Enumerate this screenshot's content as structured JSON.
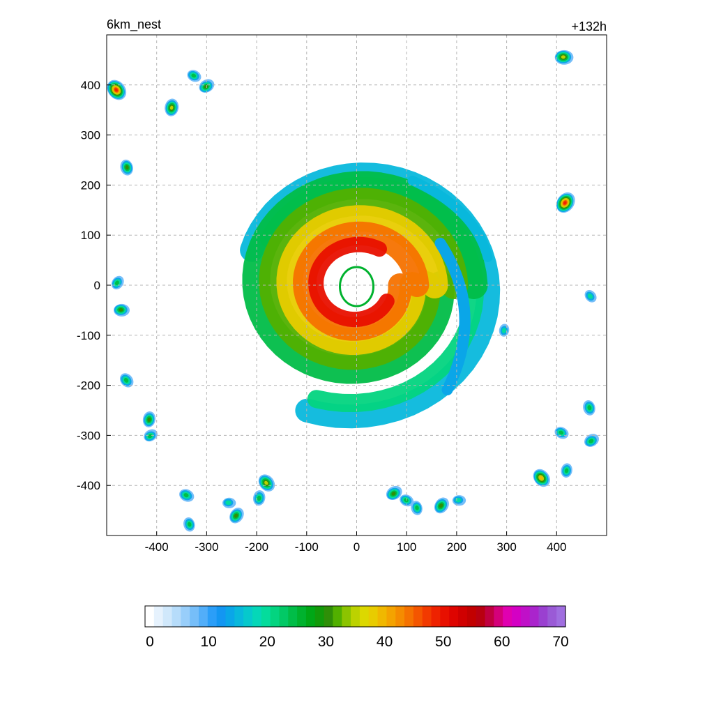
{
  "chart_data": {
    "type": "heatmap",
    "title_left": "6km_nest",
    "title_right": "+132h",
    "x_range": [
      -500,
      500
    ],
    "y_range": [
      -500,
      500
    ],
    "x_ticks": [
      -400,
      -300,
      -200,
      -100,
      0,
      100,
      200,
      300,
      400
    ],
    "y_ticks": [
      400,
      300,
      200,
      100,
      0,
      -100,
      -200,
      -300,
      -400
    ],
    "grid": true,
    "colorbar": {
      "min": 0,
      "max": 70,
      "labels": [
        0,
        10,
        20,
        30,
        40,
        50,
        60,
        70
      ],
      "colors": [
        "#ffffff",
        "#e6f2fd",
        "#d0e8fb",
        "#b6dcfa",
        "#98cefa",
        "#76bef9",
        "#52aef9",
        "#2b9ef8",
        "#1396f2",
        "#0aa6e8",
        "#08b8dc",
        "#06c9cc",
        "#05d7b8",
        "#04dc9c",
        "#03d480",
        "#02c966",
        "#01bd48",
        "#00b22e",
        "#00a716",
        "#129a0a",
        "#2f8f08",
        "#52b000",
        "#8cc400",
        "#bcd200",
        "#dcd800",
        "#e8cc00",
        "#f0b800",
        "#f4a300",
        "#f58c00",
        "#f57200",
        "#f45600",
        "#f23a00",
        "#ee2200",
        "#e81000",
        "#de0400",
        "#d00000",
        "#c20000",
        "#b80010",
        "#c00040",
        "#d4007a",
        "#e000b0",
        "#d400c4",
        "#c010c8",
        "#aa24cc",
        "#9a40d0",
        "#9a5ad6",
        "#a06ee0"
      ]
    },
    "features": [
      {
        "kind": "storm",
        "x": 0,
        "y": 0,
        "max_dbz": 52
      },
      {
        "kind": "cell",
        "x": -480,
        "y": 390,
        "max_dbz": 48
      },
      {
        "kind": "cell",
        "x": -370,
        "y": 355,
        "max_dbz": 35
      },
      {
        "kind": "cell",
        "x": -300,
        "y": 398,
        "max_dbz": 30
      },
      {
        "kind": "cell",
        "x": -325,
        "y": 418,
        "max_dbz": 25
      },
      {
        "kind": "cell",
        "x": -460,
        "y": 235,
        "max_dbz": 30
      },
      {
        "kind": "cell",
        "x": -478,
        "y": 5,
        "max_dbz": 25
      },
      {
        "kind": "cell",
        "x": -470,
        "y": -50,
        "max_dbz": 30
      },
      {
        "kind": "cell",
        "x": -460,
        "y": -190,
        "max_dbz": 28
      },
      {
        "kind": "cell",
        "x": -415,
        "y": -268,
        "max_dbz": 30
      },
      {
        "kind": "cell",
        "x": -412,
        "y": -300,
        "max_dbz": 25
      },
      {
        "kind": "cell",
        "x": -340,
        "y": -420,
        "max_dbz": 28
      },
      {
        "kind": "cell",
        "x": -335,
        "y": -478,
        "max_dbz": 25
      },
      {
        "kind": "cell",
        "x": -240,
        "y": -460,
        "max_dbz": 32
      },
      {
        "kind": "cell",
        "x": -255,
        "y": -435,
        "max_dbz": 22
      },
      {
        "kind": "cell",
        "x": -180,
        "y": -395,
        "max_dbz": 38
      },
      {
        "kind": "cell",
        "x": -195,
        "y": -425,
        "max_dbz": 28
      },
      {
        "kind": "cell",
        "x": 75,
        "y": -415,
        "max_dbz": 32
      },
      {
        "kind": "cell",
        "x": 100,
        "y": -430,
        "max_dbz": 25
      },
      {
        "kind": "cell",
        "x": 120,
        "y": -445,
        "max_dbz": 25
      },
      {
        "kind": "cell",
        "x": 170,
        "y": -440,
        "max_dbz": 33
      },
      {
        "kind": "cell",
        "x": 205,
        "y": -430,
        "max_dbz": 22
      },
      {
        "kind": "cell",
        "x": 370,
        "y": -385,
        "max_dbz": 40
      },
      {
        "kind": "cell",
        "x": 420,
        "y": -370,
        "max_dbz": 25
      },
      {
        "kind": "cell",
        "x": 470,
        "y": -310,
        "max_dbz": 28
      },
      {
        "kind": "cell",
        "x": 410,
        "y": -295,
        "max_dbz": 25
      },
      {
        "kind": "cell",
        "x": 465,
        "y": -245,
        "max_dbz": 28
      },
      {
        "kind": "cell",
        "x": 418,
        "y": 165,
        "max_dbz": 48
      },
      {
        "kind": "cell",
        "x": 415,
        "y": 455,
        "max_dbz": 38
      },
      {
        "kind": "cell",
        "x": 468,
        "y": -22,
        "max_dbz": 22
      },
      {
        "kind": "cell",
        "x": 295,
        "y": -90,
        "max_dbz": 20
      }
    ]
  }
}
